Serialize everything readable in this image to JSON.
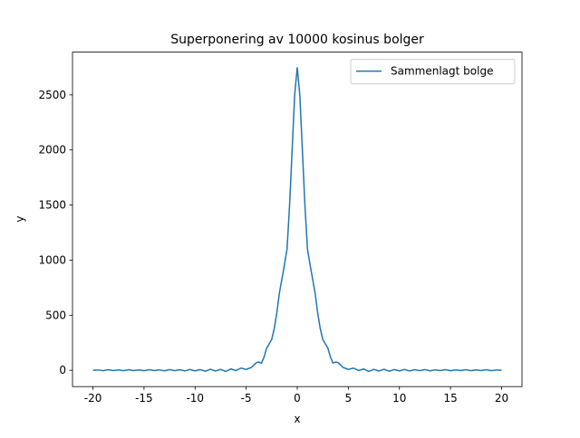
{
  "chart_data": {
    "type": "line",
    "title": "Superponering av 10000 kosinus bolger",
    "xlabel": "x",
    "ylabel": "y",
    "x": [
      -20,
      -19.5,
      -19,
      -18.5,
      -18,
      -17.5,
      -17,
      -16.5,
      -16,
      -15.5,
      -15,
      -14.5,
      -14,
      -13.5,
      -13,
      -12.5,
      -12,
      -11.5,
      -11,
      -10.5,
      -10,
      -9.5,
      -9,
      -8.5,
      -8,
      -7.5,
      -7,
      -6.5,
      -6,
      -5.5,
      -5,
      -4.5,
      -4,
      -3.75,
      -3.5,
      -3.25,
      -3,
      -2.75,
      -2.5,
      -2.25,
      -2,
      -1.75,
      -1.5,
      -1.25,
      -1,
      -0.75,
      -0.5,
      -0.25,
      0,
      0.25,
      0.5,
      0.75,
      1,
      1.25,
      1.5,
      1.75,
      2,
      2.25,
      2.5,
      2.75,
      3,
      3.25,
      3.5,
      3.75,
      4,
      4.5,
      5,
      5.5,
      6,
      6.5,
      7,
      7.5,
      8,
      8.5,
      9,
      9.5,
      10,
      10.5,
      11,
      11.5,
      12,
      12.5,
      13,
      13.5,
      14,
      14.5,
      15,
      15.5,
      16,
      16.5,
      17,
      17.5,
      18,
      18.5,
      19,
      19.5,
      20
    ],
    "series": [
      {
        "name": "Sammenlagt bolge",
        "color": "#1f77b4",
        "values": [
          0,
          3,
          -4,
          5,
          -3,
          4,
          -4,
          5,
          -3,
          4,
          -4,
          5,
          -3,
          4,
          -5,
          6,
          -4,
          5,
          -6,
          7,
          -5,
          6,
          -8,
          9,
          -6,
          8,
          -10,
          12,
          -2,
          20,
          8,
          25,
          70,
          75,
          65,
          120,
          200,
          240,
          280,
          380,
          520,
          700,
          830,
          960,
          1100,
          1500,
          2000,
          2500,
          2750,
          2500,
          2000,
          1500,
          1100,
          960,
          830,
          700,
          520,
          380,
          280,
          240,
          200,
          120,
          65,
          75,
          70,
          25,
          8,
          20,
          -2,
          12,
          -10,
          8,
          -6,
          9,
          -8,
          6,
          -5,
          7,
          -6,
          5,
          -4,
          6,
          -5,
          4,
          -3,
          5,
          -4,
          4,
          -3,
          5,
          -4,
          4,
          -3,
          5,
          -4,
          3,
          0
        ]
      }
    ],
    "xlim": [
      -22,
      22
    ],
    "ylim": [
      -148,
      2888
    ],
    "xticks": [
      -20,
      -15,
      -10,
      -5,
      0,
      5,
      10,
      15,
      20
    ],
    "yticks": [
      0,
      500,
      1000,
      1500,
      2000,
      2500
    ],
    "legend": "upper right"
  }
}
